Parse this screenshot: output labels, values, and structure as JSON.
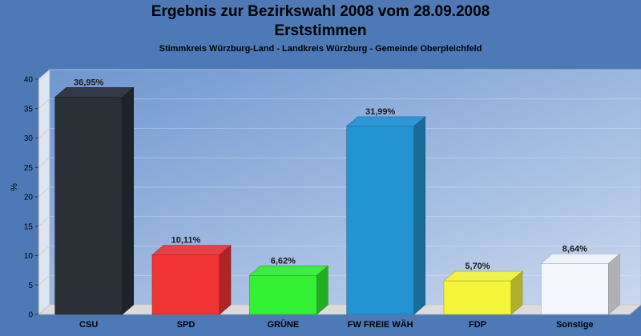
{
  "header": {
    "title": "Ergebnis zur Bezirkswahl 2008 vom 28.09.2008",
    "subtitle": "Erststimmen",
    "caption": "Stimmkreis Würzburg-Land - Landkreis Würzburg - Gemeinde Oberpleichfeld"
  },
  "chart_data": {
    "type": "bar",
    "title": "Ergebnis zur Bezirkswahl 2008 vom 28.09.2008",
    "subtitle": "Erststimmen",
    "xlabel": "",
    "ylabel": "%",
    "ylim": [
      0,
      40
    ],
    "yticks": [
      0,
      5,
      10,
      15,
      20,
      25,
      30,
      35,
      40
    ],
    "grid": true,
    "categories": [
      "CSU",
      "SPD",
      "GRÜNE",
      "FW FREIE WÄH",
      "FDP",
      "Sonstige"
    ],
    "values": [
      36.95,
      10.11,
      6.62,
      31.99,
      5.7,
      8.64
    ],
    "value_labels": [
      "36,95%",
      "10,11%",
      "6,62%",
      "31,99%",
      "5,70%",
      "8,64%"
    ],
    "colors": [
      "#2b2f36",
      "#f03434",
      "#33f033",
      "#2394d3",
      "#f5f53a",
      "#f4f6fb"
    ]
  }
}
